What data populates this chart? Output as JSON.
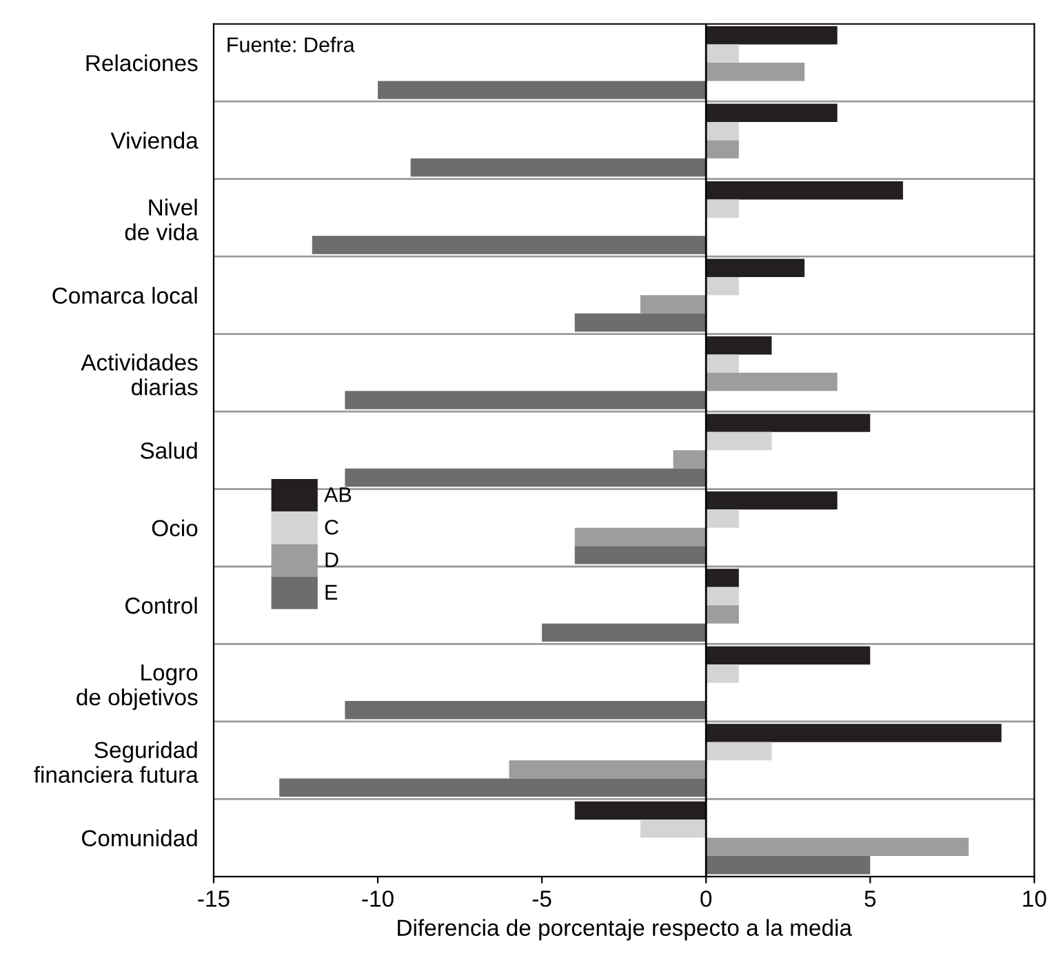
{
  "chart_data": {
    "type": "bar",
    "orientation": "horizontal",
    "xlabel": "Diferencia de porcentaje respecto a la media",
    "categories": [
      "Relaciones",
      "Vivienda",
      "Nivel\nde vida",
      "Comarca local",
      "Actividades\ndiarias",
      "Salud",
      "Ocio",
      "Control",
      "Logro\nde objetivos",
      "Seguridad\nfinanciera futura",
      "Comunidad"
    ],
    "series": [
      {
        "name": "AB",
        "color": "#231f20",
        "values": [
          4,
          4,
          6,
          3,
          2,
          5,
          4,
          1,
          5,
          9,
          -4
        ]
      },
      {
        "name": "C",
        "color": "#d4d4d4",
        "values": [
          1,
          1,
          1,
          1,
          1,
          2,
          1,
          1,
          1,
          2,
          -2
        ]
      },
      {
        "name": "D",
        "color": "#9d9d9d",
        "values": [
          3,
          1,
          0,
          -2,
          4,
          -1,
          -4,
          1,
          0,
          -6,
          8
        ]
      },
      {
        "name": "E",
        "color": "#6d6d6f",
        "values": [
          -10,
          -9,
          -12,
          -4,
          -11,
          -11,
          -4,
          -5,
          -11,
          -13,
          5
        ]
      }
    ],
    "xlim": [
      -15,
      10
    ],
    "xticks": [
      {
        "value": -15,
        "label": "-15"
      },
      {
        "value": -10,
        "label": "-10"
      },
      {
        "value": -5,
        "label": "-5"
      },
      0,
      5,
      10
    ],
    "ref_lines": [
      {
        "axis": "x",
        "value": 0,
        "color": "#000000"
      }
    ],
    "grid": "y",
    "legend": "center left",
    "annotations": [
      "Fuente: Defra"
    ]
  }
}
